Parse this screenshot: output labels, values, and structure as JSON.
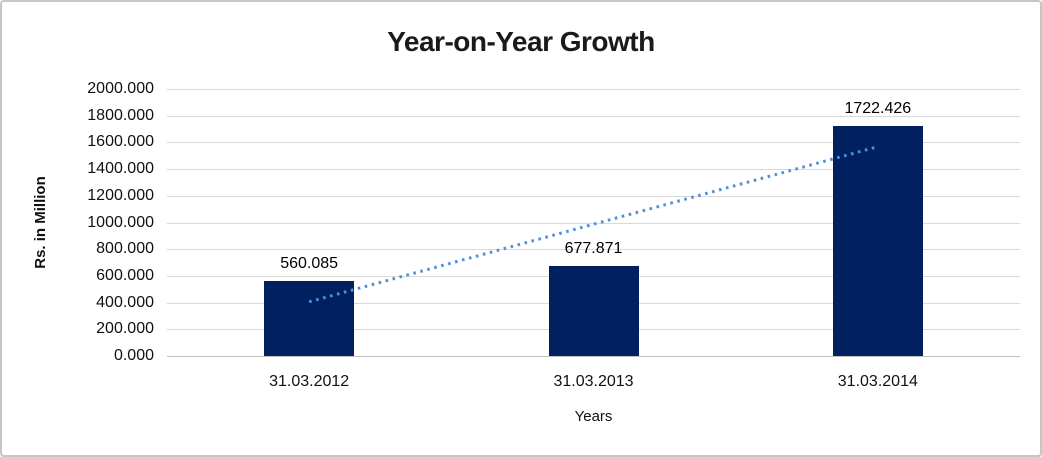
{
  "frame": {
    "background": "#ffffff",
    "border_color": "#c6c6c6"
  },
  "chart_data": {
    "type": "bar",
    "title": "Year-on-Year Growth",
    "xlabel": "Years",
    "ylabel": "Rs. in Million",
    "categories": [
      "31.03.2012",
      "31.03.2013",
      "31.03.2014"
    ],
    "values": [
      560.085,
      677.871,
      1722.426
    ],
    "data_labels": [
      "560.085",
      "677.871",
      "1722.426"
    ],
    "ylim": [
      0,
      2000
    ],
    "ytick_step": 200,
    "ytick_labels": [
      "2000.000",
      "1800.000",
      "1600.000",
      "1400.000",
      "1200.000",
      "1000.000",
      "800.000",
      "600.000",
      "400.000",
      "200.000",
      "0.000"
    ],
    "grid": true,
    "legend": "none",
    "bar_color": "#002060",
    "gridline_color": "#d9d9d9",
    "trendline": {
      "type": "linear",
      "style": "dotted",
      "color": "#4f8fdb",
      "start_value": 406,
      "end_value": 1568
    }
  }
}
